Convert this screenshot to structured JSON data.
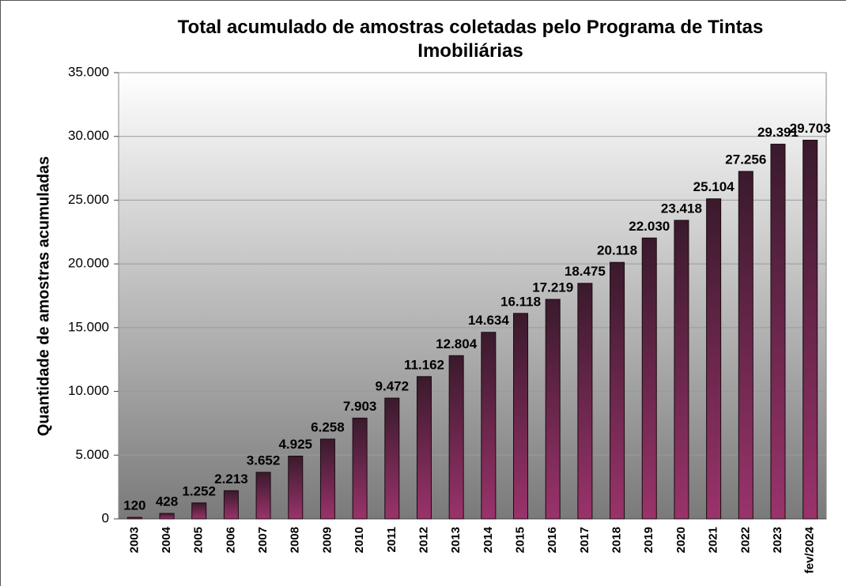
{
  "chart_data": {
    "type": "bar",
    "title": "Total acumulado de amostras coletadas pelo Programa de Tintas Imobiliárias",
    "y_label": "Quantidade de amostras acumuladas",
    "categories": [
      "2003",
      "2004",
      "2005",
      "2006",
      "2007",
      "2008",
      "2009",
      "2010",
      "2011",
      "2012",
      "2013",
      "2014",
      "2015",
      "2016",
      "2017",
      "2018",
      "2019",
      "2020",
      "2021",
      "2022",
      "2023",
      "fev/2024"
    ],
    "values": [
      120,
      428,
      1252,
      2213,
      3652,
      4925,
      6258,
      7903,
      9472,
      11162,
      12804,
      14634,
      16118,
      17219,
      18475,
      20118,
      22030,
      23418,
      25104,
      27256,
      29391,
      29703
    ],
    "value_labels": [
      "120",
      "428",
      "1.252",
      "2.213",
      "3.652",
      "4.925",
      "6.258",
      "7.903",
      "9.472",
      "11.162",
      "12.804",
      "14.634",
      "16.118",
      "17.219",
      "18.475",
      "20.118",
      "22.030",
      "23.418",
      "25.104",
      "27.256",
      "29.391",
      "29.703"
    ],
    "color": "#9a336b",
    "ylim": [
      0,
      35000
    ],
    "yticks": [
      0,
      {
        "value": 5000,
        "label": "5.000"
      },
      {
        "value": 10000,
        "label": "10.000"
      },
      {
        "value": 15000,
        "label": "15.000"
      },
      {
        "value": 20000,
        "label": "20.000"
      },
      {
        "value": 25000,
        "label": "25.000"
      },
      {
        "value": 30000,
        "label": "30.000"
      },
      {
        "value": 35000,
        "label": "35.000"
      }
    ],
    "grid": true
  }
}
